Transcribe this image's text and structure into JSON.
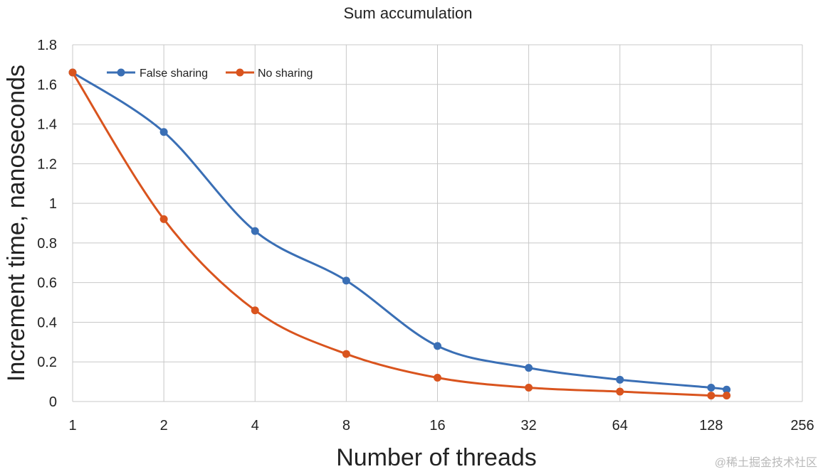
{
  "chart_data": {
    "type": "line",
    "title": "Sum accumulation",
    "xlabel": "Number of threads",
    "ylabel": "Increment time, nanoseconds",
    "xscale": "log2",
    "xlim": [
      1,
      256
    ],
    "ylim": [
      0,
      1.8
    ],
    "xticks": [
      1,
      2,
      4,
      8,
      16,
      32,
      64,
      128,
      256
    ],
    "xtick_labels": [
      "1",
      "2",
      "4",
      "8",
      "16",
      "32",
      "64",
      "128",
      "256"
    ],
    "yticks": [
      0,
      0.2,
      0.4,
      0.6,
      0.8,
      1.0,
      1.2,
      1.4,
      1.6,
      1.8
    ],
    "ytick_labels": [
      "0",
      "0.2",
      "0.4",
      "0.6",
      "0.8",
      "1",
      "1.2",
      "1.4",
      "1.6",
      "1.8"
    ],
    "grid": true,
    "legend_position": "top-left",
    "series": [
      {
        "name": "False sharing",
        "color": "#3a6fb5",
        "x": [
          1,
          2,
          4,
          8,
          16,
          32,
          64,
          128,
          144
        ],
        "y": [
          1.66,
          1.36,
          0.86,
          0.61,
          0.28,
          0.17,
          0.11,
          0.07,
          0.06
        ]
      },
      {
        "name": "No sharing",
        "color": "#d9541e",
        "x": [
          1,
          2,
          4,
          8,
          16,
          32,
          64,
          128,
          144
        ],
        "y": [
          1.66,
          0.92,
          0.46,
          0.24,
          0.12,
          0.07,
          0.05,
          0.03,
          0.03
        ]
      }
    ]
  },
  "watermark": "@稀土掘金技术社区"
}
